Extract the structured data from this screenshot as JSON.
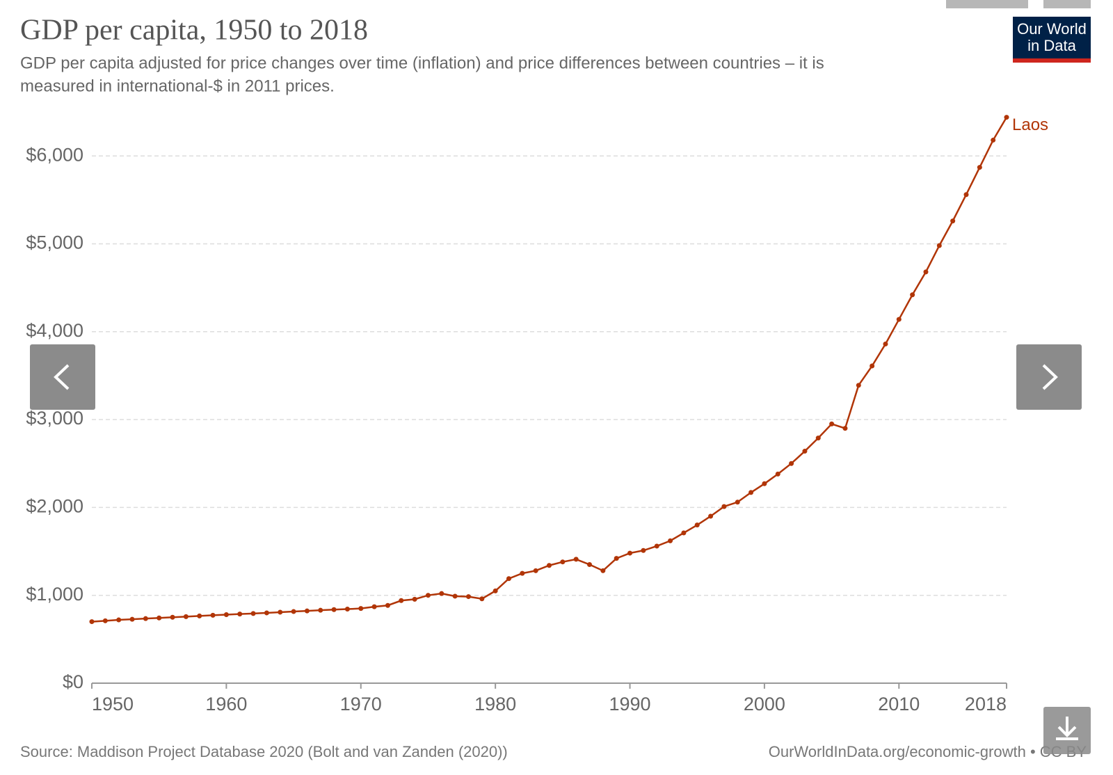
{
  "logo": [
    "Our World",
    "in Data"
  ],
  "chart_data": {
    "type": "line",
    "title": "GDP per capita, 1950 to 2018",
    "subtitle": [
      "GDP per capita adjusted for price changes over time (inflation) and price differences between countries – it is",
      "measured in international-$ in 2011 prices."
    ],
    "source": "Source: Maddison Project Database 2020 (Bolt and van Zanden (2020))",
    "url": "OurWorldInData.org/economic-growth • CC BY",
    "x": [
      1950,
      1951,
      1952,
      1953,
      1954,
      1955,
      1956,
      1957,
      1958,
      1959,
      1960,
      1961,
      1962,
      1963,
      1964,
      1965,
      1966,
      1967,
      1968,
      1969,
      1970,
      1971,
      1972,
      1973,
      1974,
      1975,
      1976,
      1977,
      1978,
      1979,
      1980,
      1981,
      1982,
      1983,
      1984,
      1985,
      1986,
      1987,
      1988,
      1989,
      1990,
      1991,
      1992,
      1993,
      1994,
      1995,
      1996,
      1997,
      1998,
      1999,
      2000,
      2001,
      2002,
      2003,
      2004,
      2005,
      2006,
      2007,
      2008,
      2009,
      2010,
      2011,
      2012,
      2013,
      2014,
      2015,
      2016,
      2017,
      2018
    ],
    "series": [
      {
        "name": "Laos",
        "color": "#b13507",
        "values": [
          700,
          710,
          720,
          727,
          735,
          742,
          750,
          757,
          765,
          773,
          780,
          787,
          793,
          800,
          808,
          815,
          822,
          830,
          837,
          843,
          850,
          870,
          885,
          940,
          955,
          1000,
          1020,
          990,
          985,
          960,
          1050,
          1190,
          1250,
          1280,
          1340,
          1380,
          1410,
          1350,
          1280,
          1420,
          1480,
          1510,
          1560,
          1620,
          1710,
          1800,
          1900,
          2010,
          2060,
          2170,
          2270,
          2380,
          2500,
          2640,
          2790,
          2950,
          2900,
          3390,
          3610,
          3860,
          4140,
          4420,
          4680,
          4980,
          5260,
          5560,
          5870,
          6180,
          6440
        ]
      }
    ],
    "xlim": [
      1950,
      2018
    ],
    "xticks": [
      1950,
      1960,
      1970,
      1980,
      1990,
      2000,
      2010,
      2018
    ],
    "ylim": [
      0,
      6500
    ],
    "yticks": [
      {
        "value": 0,
        "label": "$0"
      },
      {
        "value": 1000,
        "label": "$1,000"
      },
      {
        "value": 2000,
        "label": "$2,000"
      },
      {
        "value": 3000,
        "label": "$3,000"
      },
      {
        "value": 4000,
        "label": "$4,000"
      },
      {
        "value": 5000,
        "label": "$5,000"
      },
      {
        "value": 6000,
        "label": "$6,000"
      }
    ],
    "grid": true
  }
}
